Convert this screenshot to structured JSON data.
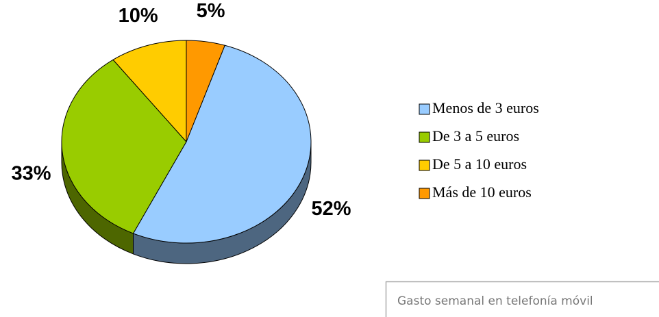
{
  "chart_data": {
    "type": "pie",
    "title": "Gasto semanal en telefonía móvil",
    "categories": [
      "Menos de 3 euros",
      "De 3 a 5 euros",
      "De 5 a 10 euros",
      "Más de 10 euros"
    ],
    "values": [
      52,
      33,
      10,
      5
    ],
    "value_labels": [
      "52%",
      "33%",
      "10%",
      "5%"
    ],
    "colors": [
      "#99ccff",
      "#99cc00",
      "#ffcc00",
      "#ff9900"
    ],
    "legend": "right"
  }
}
